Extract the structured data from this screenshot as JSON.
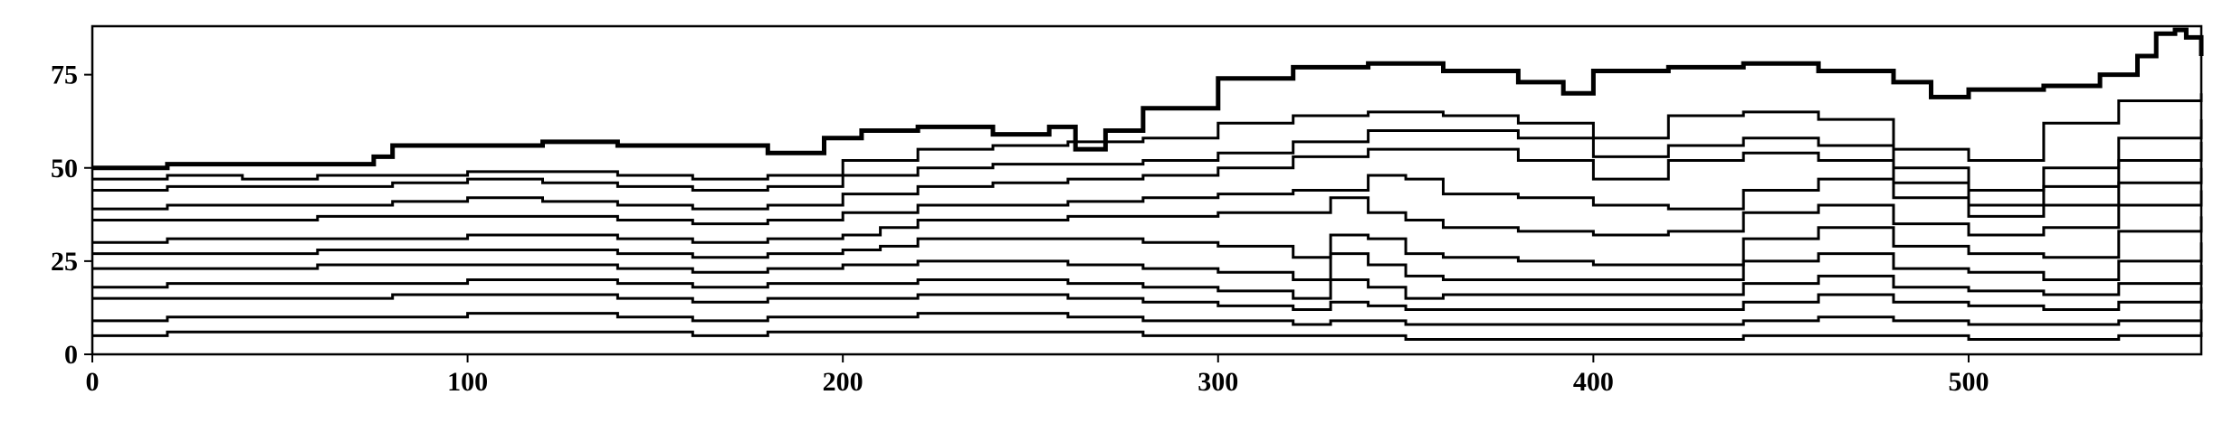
{
  "chart_data": {
    "type": "line",
    "title": "",
    "xlabel": "",
    "ylabel": "",
    "xlim": [
      0,
      562
    ],
    "ylim": [
      0,
      88
    ],
    "x_ticks": [
      "0",
      "100",
      "200",
      "300",
      "400",
      "500"
    ],
    "y_ticks": [
      "0",
      "25",
      "50",
      "75"
    ],
    "grid": false,
    "legend": "none",
    "line_color": "#000000",
    "series": [
      {
        "x": [
          0,
          20,
          40,
          60,
          70,
          75,
          80,
          100,
          120,
          140,
          160,
          180,
          195,
          205,
          220,
          240,
          255,
          262,
          270,
          280,
          300,
          320,
          340,
          360,
          380,
          392,
          400,
          420,
          440,
          460,
          480,
          490,
          500,
          520,
          535,
          545,
          550,
          555,
          558,
          562
        ],
        "y": [
          50,
          51,
          51,
          51,
          51,
          53,
          56,
          56,
          57,
          56,
          56,
          54,
          58,
          60,
          61,
          59,
          61,
          55,
          60,
          66,
          74,
          77,
          78,
          76,
          73,
          70,
          76,
          77,
          78,
          76,
          73,
          69,
          71,
          72,
          75,
          80,
          86,
          87,
          85,
          80
        ]
      },
      {
        "x": [
          0,
          20,
          40,
          60,
          80,
          100,
          120,
          140,
          160,
          170,
          180,
          200,
          220,
          240,
          260,
          280,
          300,
          320,
          340,
          360,
          380,
          400,
          420,
          440,
          460,
          480,
          500,
          520,
          540,
          562
        ],
        "y": [
          47,
          48,
          47,
          48,
          48,
          49,
          49,
          48,
          47,
          47,
          48,
          52,
          55,
          56,
          57,
          58,
          62,
          64,
          65,
          64,
          62,
          58,
          64,
          65,
          63,
          55,
          52,
          62,
          68,
          70
        ]
      },
      {
        "x": [
          0,
          20,
          40,
          60,
          80,
          100,
          120,
          140,
          160,
          180,
          200,
          220,
          240,
          260,
          280,
          300,
          320,
          340,
          360,
          380,
          400,
          420,
          440,
          460,
          480,
          500,
          520,
          540,
          562
        ],
        "y": [
          44,
          45,
          45,
          45,
          46,
          47,
          46,
          45,
          44,
          45,
          48,
          50,
          51,
          51,
          52,
          54,
          57,
          60,
          60,
          58,
          53,
          56,
          58,
          56,
          50,
          44,
          50,
          58,
          63
        ]
      },
      {
        "x": [
          0,
          20,
          40,
          60,
          80,
          100,
          120,
          140,
          160,
          180,
          200,
          220,
          240,
          260,
          280,
          300,
          320,
          340,
          360,
          380,
          400,
          420,
          440,
          460,
          480,
          500,
          520,
          540,
          562
        ],
        "y": [
          39,
          40,
          40,
          40,
          41,
          42,
          41,
          40,
          39,
          40,
          43,
          45,
          46,
          47,
          48,
          50,
          53,
          55,
          55,
          52,
          47,
          52,
          54,
          52,
          46,
          40,
          45,
          52,
          57
        ]
      },
      {
        "x": [
          0,
          20,
          40,
          60,
          80,
          100,
          120,
          140,
          160,
          180,
          200,
          220,
          240,
          260,
          280,
          300,
          320,
          330,
          340,
          350,
          360,
          380,
          400,
          420,
          440,
          460,
          480,
          500,
          520,
          540,
          562
        ],
        "y": [
          36,
          36,
          36,
          37,
          37,
          37,
          37,
          36,
          35,
          36,
          38,
          40,
          40,
          41,
          42,
          43,
          44,
          44,
          48,
          47,
          43,
          42,
          40,
          39,
          44,
          47,
          42,
          37,
          40,
          46,
          50
        ]
      },
      {
        "x": [
          0,
          20,
          40,
          60,
          80,
          100,
          120,
          140,
          160,
          180,
          200,
          210,
          220,
          240,
          260,
          280,
          300,
          320,
          330,
          340,
          350,
          360,
          380,
          400,
          420,
          440,
          460,
          480,
          500,
          520,
          540,
          562
        ],
        "y": [
          30,
          31,
          31,
          31,
          31,
          32,
          32,
          31,
          30,
          31,
          32,
          34,
          36,
          36,
          37,
          37,
          38,
          38,
          42,
          38,
          36,
          34,
          33,
          32,
          33,
          38,
          40,
          35,
          32,
          34,
          40,
          44
        ]
      },
      {
        "x": [
          0,
          20,
          40,
          60,
          80,
          100,
          120,
          140,
          160,
          180,
          200,
          210,
          220,
          240,
          260,
          280,
          300,
          320,
          330,
          340,
          350,
          360,
          380,
          400,
          420,
          440,
          460,
          480,
          500,
          520,
          540,
          562
        ],
        "y": [
          27,
          27,
          27,
          28,
          28,
          28,
          28,
          27,
          26,
          27,
          28,
          29,
          31,
          31,
          31,
          30,
          29,
          26,
          32,
          31,
          27,
          26,
          25,
          24,
          24,
          31,
          34,
          29,
          27,
          26,
          33,
          37
        ]
      },
      {
        "x": [
          0,
          20,
          40,
          60,
          80,
          100,
          120,
          140,
          160,
          180,
          200,
          210,
          220,
          240,
          260,
          280,
          300,
          320,
          330,
          340,
          350,
          360,
          380,
          400,
          420,
          440,
          460,
          480,
          500,
          520,
          540,
          562
        ],
        "y": [
          23,
          23,
          23,
          24,
          24,
          24,
          24,
          23,
          22,
          23,
          24,
          24,
          25,
          25,
          24,
          23,
          22,
          20,
          27,
          24,
          21,
          20,
          20,
          20,
          20,
          25,
          27,
          23,
          22,
          20,
          25,
          30
        ]
      },
      {
        "x": [
          0,
          20,
          40,
          60,
          80,
          100,
          120,
          140,
          160,
          180,
          200,
          210,
          220,
          240,
          260,
          280,
          300,
          320,
          330,
          340,
          350,
          360,
          380,
          400,
          420,
          440,
          460,
          480,
          500,
          520,
          540,
          562
        ],
        "y": [
          18,
          19,
          19,
          19,
          19,
          20,
          20,
          19,
          18,
          19,
          19,
          19,
          20,
          20,
          19,
          18,
          17,
          15,
          20,
          18,
          15,
          16,
          16,
          16,
          16,
          19,
          21,
          18,
          17,
          16,
          19,
          24
        ]
      },
      {
        "x": [
          0,
          20,
          40,
          60,
          80,
          100,
          120,
          140,
          160,
          180,
          200,
          210,
          220,
          240,
          260,
          280,
          300,
          320,
          330,
          340,
          350,
          360,
          380,
          400,
          420,
          440,
          460,
          480,
          500,
          520,
          540,
          562
        ],
        "y": [
          15,
          15,
          15,
          15,
          16,
          16,
          16,
          15,
          14,
          15,
          15,
          15,
          16,
          16,
          15,
          14,
          13,
          12,
          14,
          13,
          12,
          12,
          12,
          12,
          12,
          14,
          16,
          14,
          13,
          12,
          14,
          18
        ]
      },
      {
        "x": [
          0,
          20,
          40,
          60,
          80,
          100,
          120,
          140,
          160,
          180,
          200,
          210,
          220,
          240,
          260,
          280,
          300,
          320,
          330,
          340,
          350,
          360,
          380,
          400,
          420,
          440,
          460,
          480,
          500,
          520,
          540,
          562
        ],
        "y": [
          9,
          10,
          10,
          10,
          10,
          11,
          11,
          10,
          9,
          10,
          10,
          10,
          11,
          11,
          10,
          9,
          9,
          8,
          9,
          9,
          8,
          8,
          8,
          8,
          8,
          9,
          10,
          9,
          8,
          8,
          9,
          12
        ]
      },
      {
        "x": [
          0,
          20,
          40,
          60,
          80,
          100,
          120,
          140,
          160,
          180,
          200,
          210,
          220,
          240,
          260,
          280,
          300,
          320,
          330,
          340,
          350,
          360,
          380,
          400,
          420,
          440,
          460,
          480,
          500,
          520,
          540,
          562
        ],
        "y": [
          5,
          6,
          6,
          6,
          6,
          6,
          6,
          6,
          5,
          6,
          6,
          6,
          6,
          6,
          6,
          5,
          5,
          5,
          5,
          5,
          4,
          4,
          4,
          4,
          4,
          5,
          5,
          5,
          4,
          4,
          5,
          6
        ]
      }
    ]
  }
}
